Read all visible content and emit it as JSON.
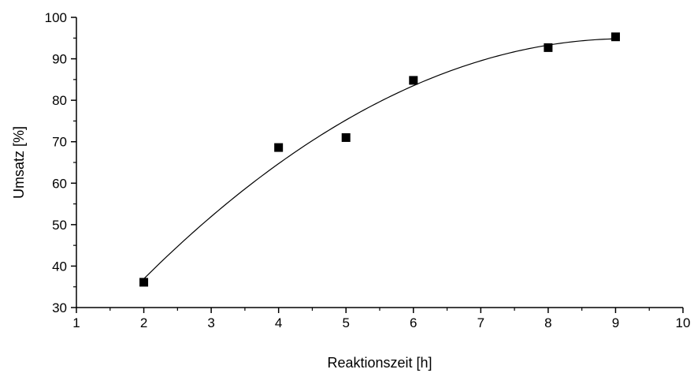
{
  "chart_data": {
    "type": "scatter",
    "title": "",
    "xlabel": "Reaktionszeit [h]",
    "ylabel": "Umsatz [%]",
    "xlim": [
      1,
      10
    ],
    "ylim": [
      30,
      100
    ],
    "x_ticks": [
      1,
      2,
      3,
      4,
      5,
      6,
      7,
      8,
      9,
      10
    ],
    "y_ticks": [
      30,
      40,
      50,
      60,
      70,
      80,
      90,
      100
    ],
    "grid": false,
    "legend": "none",
    "marker": "square",
    "marker_color": "#000000",
    "series": [
      {
        "x": [
          2,
          4,
          5,
          6,
          8,
          9
        ],
        "y": [
          36.1,
          68.6,
          71.0,
          84.8,
          92.7,
          95.3
        ]
      }
    ],
    "fit_curve": {
      "type": "polynomial-2",
      "x_range": [
        2,
        9
      ],
      "color": "#000000"
    }
  }
}
